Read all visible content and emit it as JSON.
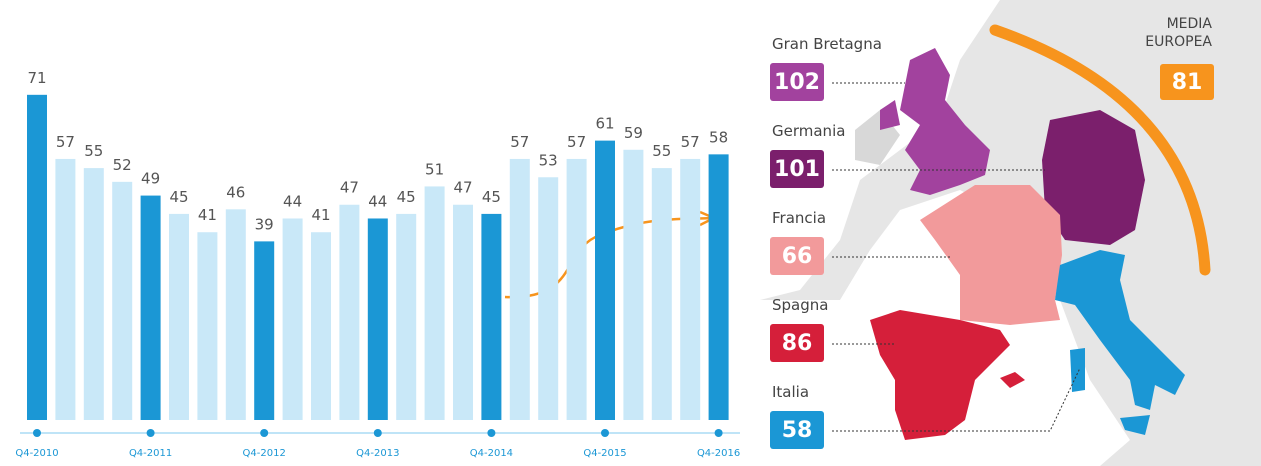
{
  "chart_data": {
    "type": "bar",
    "categories": [
      "Q4-2010",
      null,
      null,
      null,
      "Q4-2011",
      null,
      null,
      null,
      "Q4-2012",
      null,
      null,
      null,
      "Q4-2013",
      null,
      null,
      null,
      "Q4-2014",
      null,
      null,
      null,
      "Q4-2015",
      null,
      null,
      null,
      "Q4-2016"
    ],
    "values": [
      71,
      57,
      55,
      52,
      49,
      45,
      41,
      46,
      39,
      44,
      41,
      47,
      44,
      45,
      51,
      47,
      45,
      57,
      53,
      57,
      61,
      59,
      55,
      57,
      58
    ],
    "color": "#c9e8f8",
    "highlight_color": "#1b97d5"
  },
  "map": {
    "average": {
      "label": [
        "MEDIA",
        "EUROPEA"
      ],
      "value": 81,
      "color": "#f7941d"
    },
    "countries": [
      {
        "name": "Gran Bretagna",
        "value": 102,
        "color": "#a2429e"
      },
      {
        "name": "Germania",
        "value": 101,
        "color": "#7b1f6c"
      },
      {
        "name": "Francia",
        "value": 66,
        "color": "#f29a9b"
      },
      {
        "name": "Spagna",
        "value": 86,
        "color": "#d51f3a"
      },
      {
        "name": "Italia",
        "value": 58,
        "color": "#1b97d5"
      }
    ]
  }
}
